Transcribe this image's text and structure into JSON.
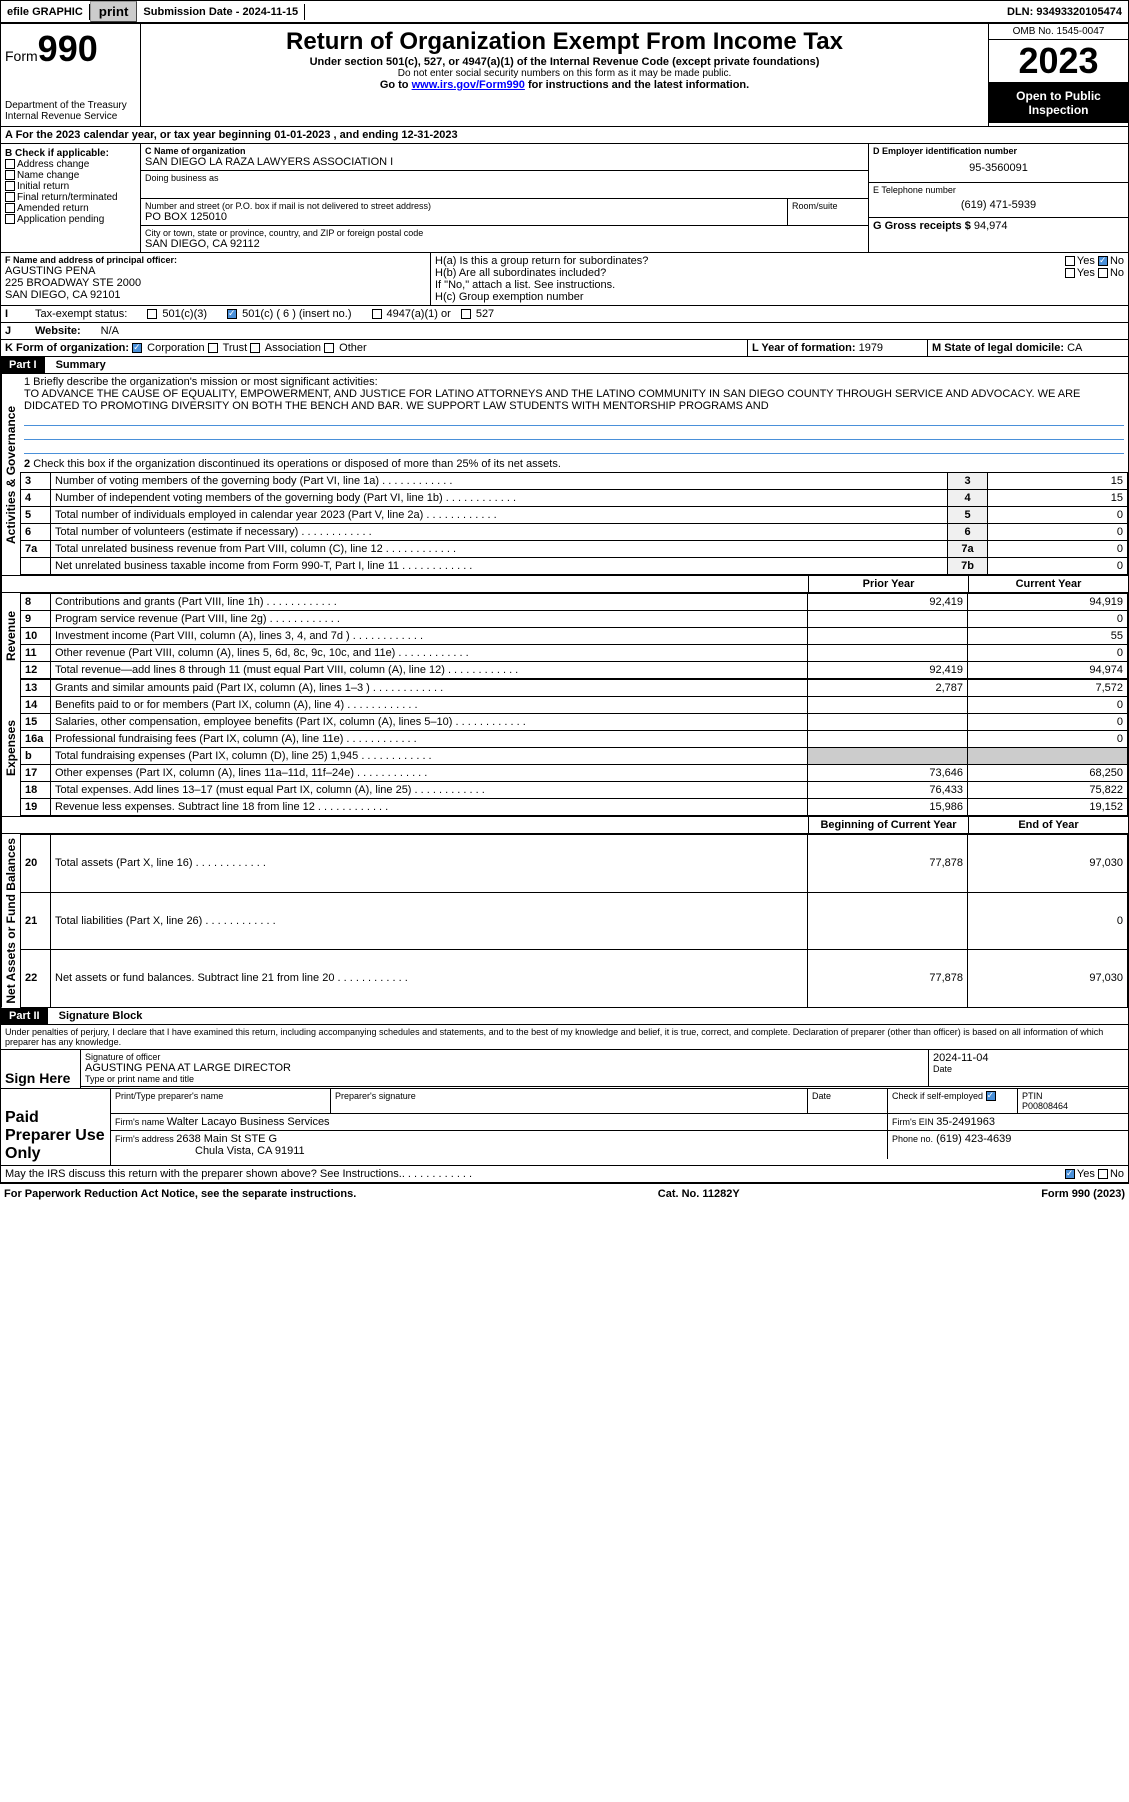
{
  "efile": {
    "graphic": "efile GRAPHIC",
    "print": "print",
    "sub_label": "Submission Date - 2024-11-15",
    "dln": "DLN: 93493320105474"
  },
  "header": {
    "form_label": "Form",
    "form_no": "990",
    "dept": "Department of the Treasury",
    "irs": "Internal Revenue Service",
    "title": "Return of Organization Exempt From Income Tax",
    "sub1": "Under section 501(c), 527, or 4947(a)(1) of the Internal Revenue Code (except private foundations)",
    "sub2": "Do not enter social security numbers on this form as it may be made public.",
    "sub3_pre": "Go to ",
    "sub3_link": "www.irs.gov/Form990",
    "sub3_post": " for instructions and the latest information.",
    "omb": "OMB No. 1545-0047",
    "year": "2023",
    "inspection": "Open to Public Inspection"
  },
  "line_a": "A  For the 2023 calendar year, or tax year beginning 01-01-2023    , and ending 12-31-2023",
  "box_b": {
    "label": "B Check if applicable:",
    "opts": [
      "Address change",
      "Name change",
      "Initial return",
      "Final return/terminated",
      "Amended return",
      "Application pending"
    ]
  },
  "box_c": {
    "name_label": "C Name of organization",
    "name": "SAN DIEGO LA RAZA LAWYERS ASSOCIATION I",
    "dba_label": "Doing business as",
    "dba": "",
    "addr_label": "Number and street (or P.O. box if mail is not delivered to street address)",
    "room_label": "Room/suite",
    "addr": "PO BOX 125010",
    "city_label": "City or town, state or province, country, and ZIP or foreign postal code",
    "city": "SAN DIEGO, CA  92112"
  },
  "box_d": {
    "label": "D Employer identification number",
    "val": "95-3560091"
  },
  "box_e": {
    "label": "E Telephone number",
    "val": "(619) 471-5939"
  },
  "box_g": {
    "label": "G Gross receipts $",
    "val": "94,974"
  },
  "box_f": {
    "label": "F Name and address of principal officer:",
    "name": "AGUSTING PENA",
    "addr1": "225 BROADWAY STE 2000",
    "addr2": "SAN DIEGO, CA  92101"
  },
  "box_h": {
    "a": "H(a)  Is this a group return for subordinates?",
    "b": "H(b)  Are all subordinates included?",
    "note": "If \"No,\" attach a list. See instructions.",
    "c": "H(c)  Group exemption number  "
  },
  "box_i": {
    "label": "Tax-exempt status:",
    "insert": "501(c) ( 6 ) (insert no.)"
  },
  "box_j": {
    "label": "Website: ",
    "val": "N/A"
  },
  "box_k": {
    "label": "K Form of organization:",
    "corp": "Corporation",
    "trust": "Trust",
    "assoc": "Association",
    "other": "Other"
  },
  "box_l": {
    "label": "L Year of formation:",
    "val": "1979"
  },
  "box_m": {
    "label": "M State of legal domicile:",
    "val": "CA"
  },
  "part1": {
    "header": "Part I",
    "title": "Summary",
    "m1_label": "1  Briefly describe the organization's mission or most significant activities:",
    "mission": "TO ADVANCE THE CAUSE OF EQUALITY, EMPOWERMENT, AND JUSTICE FOR LATINO ATTORNEYS AND THE LATINO COMMUNITY IN SAN DIEGO COUNTY THROUGH SERVICE AND ADVOCACY. WE ARE DIDCATED TO PROMOTING DIVERSITY ON BOTH THE BENCH AND BAR. WE SUPPORT LAW STUDENTS WITH MENTORSHIP PROGRAMS AND",
    "line2": "Check this box       if the organization discontinued its operations or disposed of more than 25% of its net assets.",
    "vert_gov": "Activities & Governance",
    "vert_rev": "Revenue",
    "vert_exp": "Expenses",
    "vert_net": "Net Assets or Fund Balances",
    "rows_gov": [
      {
        "n": "3",
        "t": "Number of voting members of the governing body (Part VI, line 1a)",
        "box": "3",
        "v": "15"
      },
      {
        "n": "4",
        "t": "Number of independent voting members of the governing body (Part VI, line 1b)",
        "box": "4",
        "v": "15"
      },
      {
        "n": "5",
        "t": "Total number of individuals employed in calendar year 2023 (Part V, line 2a)",
        "box": "5",
        "v": "0"
      },
      {
        "n": "6",
        "t": "Total number of volunteers (estimate if necessary)",
        "box": "6",
        "v": "0"
      },
      {
        "n": "7a",
        "t": "Total unrelated business revenue from Part VIII, column (C), line 12",
        "box": "7a",
        "v": "0"
      },
      {
        "n": "",
        "t": "Net unrelated business taxable income from Form 990-T, Part I, line 11",
        "box": "7b",
        "v": "0"
      }
    ],
    "prior_hdr": "Prior Year",
    "curr_hdr": "Current Year",
    "rows_rev": [
      {
        "n": "8",
        "t": "Contributions and grants (Part VIII, line 1h)",
        "p": "92,419",
        "c": "94,919"
      },
      {
        "n": "9",
        "t": "Program service revenue (Part VIII, line 2g)",
        "p": "",
        "c": "0"
      },
      {
        "n": "10",
        "t": "Investment income (Part VIII, column (A), lines 3, 4, and 7d )",
        "p": "",
        "c": "55"
      },
      {
        "n": "11",
        "t": "Other revenue (Part VIII, column (A), lines 5, 6d, 8c, 9c, 10c, and 11e)",
        "p": "",
        "c": "0"
      },
      {
        "n": "12",
        "t": "Total revenue—add lines 8 through 11 (must equal Part VIII, column (A), line 12)",
        "p": "92,419",
        "c": "94,974"
      }
    ],
    "rows_exp": [
      {
        "n": "13",
        "t": "Grants and similar amounts paid (Part IX, column (A), lines 1–3 )",
        "p": "2,787",
        "c": "7,572"
      },
      {
        "n": "14",
        "t": "Benefits paid to or for members (Part IX, column (A), line 4)",
        "p": "",
        "c": "0"
      },
      {
        "n": "15",
        "t": "Salaries, other compensation, employee benefits (Part IX, column (A), lines 5–10)",
        "p": "",
        "c": "0"
      },
      {
        "n": "16a",
        "t": "Professional fundraising fees (Part IX, column (A), line 11e)",
        "p": "",
        "c": "0"
      },
      {
        "n": "b",
        "t": "Total fundraising expenses (Part IX, column (D), line 25) 1,945",
        "p": "shade",
        "c": "shade"
      },
      {
        "n": "17",
        "t": "Other expenses (Part IX, column (A), lines 11a–11d, 11f–24e)",
        "p": "73,646",
        "c": "68,250"
      },
      {
        "n": "18",
        "t": "Total expenses. Add lines 13–17 (must equal Part IX, column (A), line 25)",
        "p": "76,433",
        "c": "75,822"
      },
      {
        "n": "19",
        "t": "Revenue less expenses. Subtract line 18 from line 12",
        "p": "15,986",
        "c": "19,152"
      }
    ],
    "beg_hdr": "Beginning of Current Year",
    "end_hdr": "End of Year",
    "rows_net": [
      {
        "n": "20",
        "t": "Total assets (Part X, line 16)",
        "p": "77,878",
        "c": "97,030"
      },
      {
        "n": "21",
        "t": "Total liabilities (Part X, line 26)",
        "p": "",
        "c": "0"
      },
      {
        "n": "22",
        "t": "Net assets or fund balances. Subtract line 21 from line 20",
        "p": "77,878",
        "c": "97,030"
      }
    ]
  },
  "part2": {
    "header": "Part II",
    "title": "Signature Block",
    "perjury": "Under penalties of perjury, I declare that I have examined this return, including accompanying schedules and statements, and to the best of my knowledge and belief, it is true, correct, and complete. Declaration of preparer (other than officer) is based on all information of which preparer has any knowledge.",
    "sign_here": "Sign Here",
    "sig_label": "Signature of officer",
    "sig_name": "AGUSTING PENA  AT LARGE DIRECTOR",
    "sig_type": "Type or print name and title",
    "date_label": "Date",
    "date_val": "2024-11-04",
    "paid": "Paid Preparer Use Only",
    "prep_name_label": "Print/Type preparer's name",
    "prep_sig_label": "Preparer's signature",
    "check_se": "Check          if self-employed",
    "ptin_label": "PTIN",
    "ptin": "P00808464",
    "firm_name_label": "Firm's name   ",
    "firm_name": "Walter Lacayo Business Services",
    "firm_ein_label": "Firm's EIN  ",
    "firm_ein": "35-2491963",
    "firm_addr_label": "Firm's address ",
    "firm_addr1": "2638 Main St STE G",
    "firm_addr2": "Chula Vista, CA  91911",
    "phone_label": "Phone no.",
    "phone": "(619) 423-4639",
    "discuss": "May the IRS discuss this return with the preparer shown above? See Instructions."
  },
  "footer": {
    "pra": "For Paperwork Reduction Act Notice, see the separate instructions.",
    "cat": "Cat. No. 11282Y",
    "form": "Form 990 (2023)"
  },
  "yn": {
    "yes": "Yes",
    "no": "No"
  }
}
